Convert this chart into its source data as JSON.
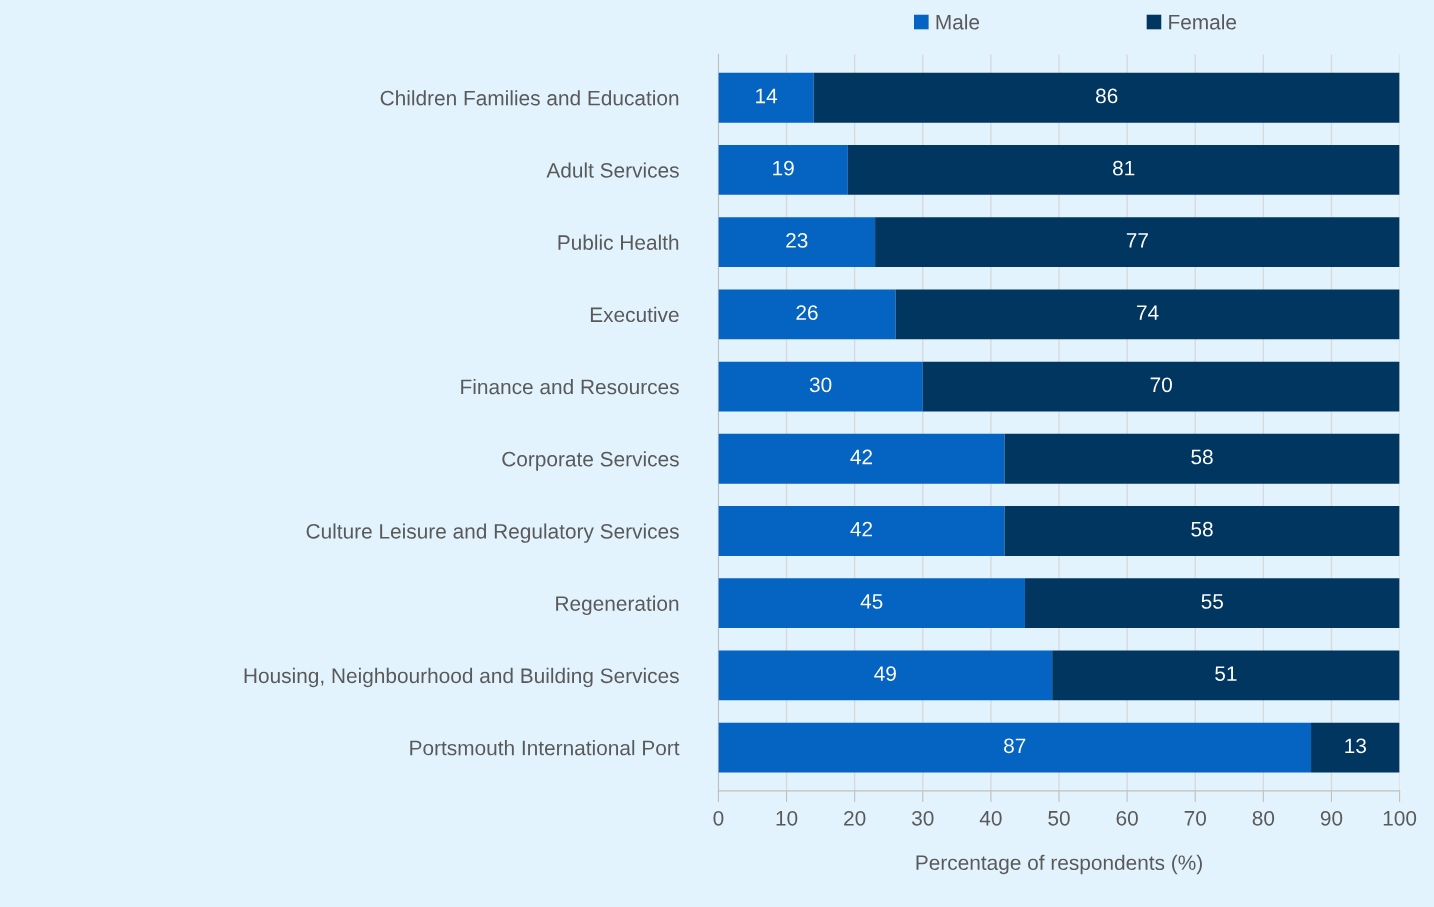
{
  "chart_data": {
    "type": "bar",
    "orientation": "horizontal",
    "stacked": true,
    "xlabel": "Percentage of respondents (%)",
    "categories": [
      "Children Families and Education",
      "Adult Services",
      "Public Health",
      "Executive",
      "Finance and Resources",
      "Corporate Services",
      "Culture Leisure and Regulatory Services",
      "Regeneration",
      "Housing, Neighbourhood and Building Services",
      "Portsmouth International Port"
    ],
    "series": [
      {
        "name": "Male",
        "color": "#0563c1",
        "values": [
          14,
          19,
          23,
          26,
          30,
          42,
          42,
          45,
          49,
          87
        ]
      },
      {
        "name": "Female",
        "color": "#003660",
        "values": [
          86,
          81,
          77,
          74,
          70,
          58,
          58,
          55,
          51,
          13
        ]
      }
    ],
    "xlim": [
      0,
      100
    ],
    "xticks": [
      0,
      10,
      20,
      30,
      40,
      50,
      60,
      70,
      80,
      90,
      100
    ],
    "grid": "x",
    "legend": "top",
    "data_labels": true
  }
}
